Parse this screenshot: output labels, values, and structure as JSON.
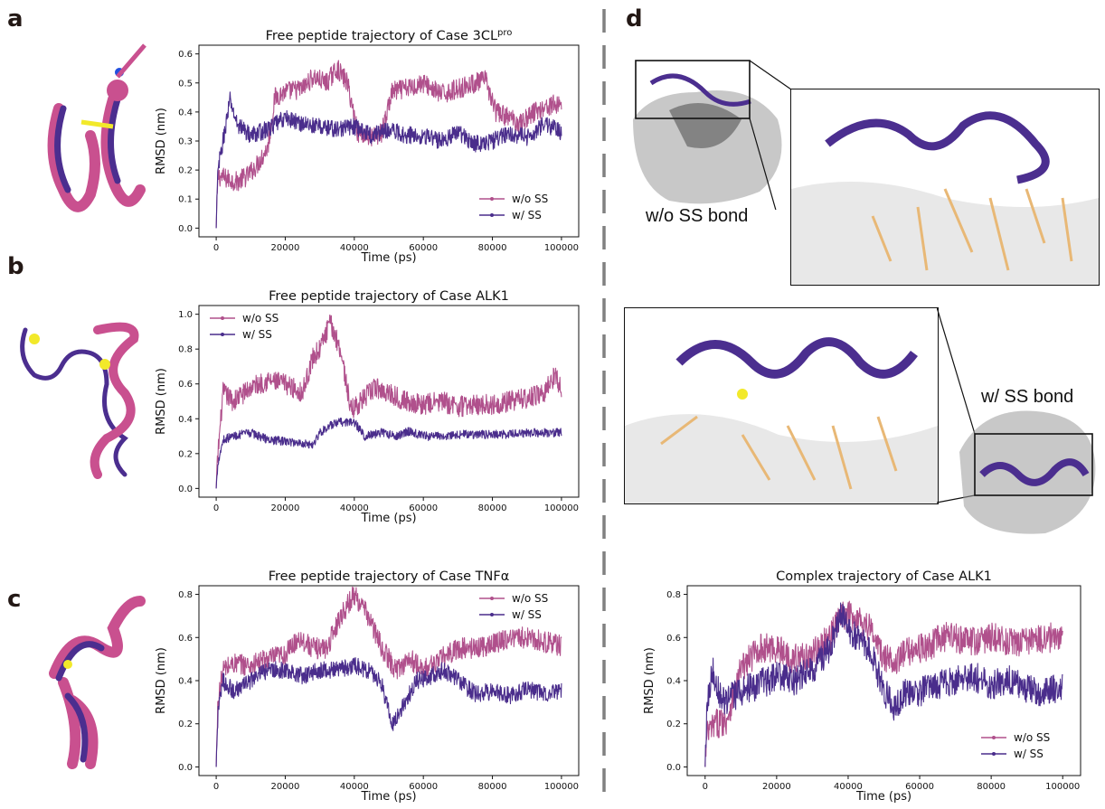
{
  "panels": {
    "a": "a",
    "b": "b",
    "c": "c",
    "d": "d"
  },
  "captions": {
    "wo_ss_bond": "w/o SS bond",
    "w_ss_bond": "w/ SS bond"
  },
  "colors": {
    "wo_ss": "#b0508c",
    "w_ss": "#4a2d8c",
    "helix_pink": "#c9508f",
    "helix_purple": "#4b2e8f",
    "bond_yellow": "#f2e92a",
    "sidechain_tan": "#e8b876",
    "surface_grey": "#9a9a9a"
  },
  "chart_data": [
    {
      "id": "a",
      "type": "line",
      "title": "Free peptide trajectory of Case 3CL",
      "title_sup": "pro",
      "xlabel": "Time (ps)",
      "ylabel": "RMSD (nm)",
      "xlim": [
        0,
        100000
      ],
      "ylim": [
        0,
        0.6
      ],
      "xticks": [
        "0",
        "20000",
        "40000",
        "60000",
        "80000",
        "100000"
      ],
      "yticks": [
        "0.0",
        "0.1",
        "0.2",
        "0.3",
        "0.4",
        "0.5",
        "0.6"
      ],
      "legend": "lower-right",
      "series": [
        {
          "name": "w/o SS",
          "noise": 0.035,
          "points": [
            [
              0,
              0.0
            ],
            [
              500,
              0.18
            ],
            [
              3000,
              0.17
            ],
            [
              6000,
              0.16
            ],
            [
              9000,
              0.18
            ],
            [
              12000,
              0.22
            ],
            [
              15000,
              0.28
            ],
            [
              17000,
              0.45
            ],
            [
              20000,
              0.47
            ],
            [
              25000,
              0.48
            ],
            [
              28000,
              0.52
            ],
            [
              32000,
              0.5
            ],
            [
              35000,
              0.55
            ],
            [
              38000,
              0.5
            ],
            [
              41000,
              0.33
            ],
            [
              45000,
              0.31
            ],
            [
              48000,
              0.33
            ],
            [
              51000,
              0.47
            ],
            [
              55000,
              0.48
            ],
            [
              60000,
              0.5
            ],
            [
              65000,
              0.46
            ],
            [
              70000,
              0.48
            ],
            [
              75000,
              0.5
            ],
            [
              78000,
              0.51
            ],
            [
              81000,
              0.4
            ],
            [
              85000,
              0.38
            ],
            [
              88000,
              0.36
            ],
            [
              92000,
              0.4
            ],
            [
              96000,
              0.42
            ],
            [
              100000,
              0.43
            ]
          ]
        },
        {
          "name": "w/ SS",
          "noise": 0.03,
          "points": [
            [
              0,
              0.0
            ],
            [
              500,
              0.2
            ],
            [
              2000,
              0.3
            ],
            [
              4000,
              0.44
            ],
            [
              6000,
              0.36
            ],
            [
              10000,
              0.32
            ],
            [
              15000,
              0.34
            ],
            [
              20000,
              0.38
            ],
            [
              25000,
              0.36
            ],
            [
              30000,
              0.35
            ],
            [
              35000,
              0.34
            ],
            [
              40000,
              0.35
            ],
            [
              45000,
              0.32
            ],
            [
              50000,
              0.34
            ],
            [
              55000,
              0.32
            ],
            [
              60000,
              0.32
            ],
            [
              65000,
              0.3
            ],
            [
              70000,
              0.33
            ],
            [
              75000,
              0.29
            ],
            [
              80000,
              0.3
            ],
            [
              85000,
              0.33
            ],
            [
              90000,
              0.31
            ],
            [
              95000,
              0.36
            ],
            [
              100000,
              0.33
            ]
          ]
        }
      ]
    },
    {
      "id": "b",
      "type": "line",
      "title": "Free peptide trajectory of Case ALK1",
      "xlabel": "Time (ps)",
      "ylabel": "RMSD (nm)",
      "xlim": [
        0,
        100000
      ],
      "ylim": [
        0,
        1.0
      ],
      "xticks": [
        "0",
        "20000",
        "40000",
        "60000",
        "80000",
        "100000"
      ],
      "yticks": [
        "0.0",
        "0.2",
        "0.4",
        "0.6",
        "0.8",
        "1.0"
      ],
      "legend": "upper-left",
      "series": [
        {
          "name": "w/o SS",
          "noise": 0.06,
          "points": [
            [
              0,
              0.0
            ],
            [
              500,
              0.2
            ],
            [
              2000,
              0.55
            ],
            [
              5000,
              0.5
            ],
            [
              10000,
              0.58
            ],
            [
              15000,
              0.62
            ],
            [
              20000,
              0.6
            ],
            [
              25000,
              0.55
            ],
            [
              28000,
              0.75
            ],
            [
              30000,
              0.8
            ],
            [
              33000,
              0.95
            ],
            [
              36000,
              0.8
            ],
            [
              39000,
              0.45
            ],
            [
              42000,
              0.5
            ],
            [
              46000,
              0.58
            ],
            [
              50000,
              0.55
            ],
            [
              55000,
              0.5
            ],
            [
              60000,
              0.48
            ],
            [
              65000,
              0.5
            ],
            [
              70000,
              0.47
            ],
            [
              75000,
              0.48
            ],
            [
              80000,
              0.48
            ],
            [
              85000,
              0.5
            ],
            [
              90000,
              0.52
            ],
            [
              95000,
              0.55
            ],
            [
              98000,
              0.65
            ],
            [
              100000,
              0.58
            ]
          ]
        },
        {
          "name": "w/ SS",
          "noise": 0.025,
          "points": [
            [
              0,
              0.0
            ],
            [
              500,
              0.15
            ],
            [
              2000,
              0.28
            ],
            [
              5000,
              0.3
            ],
            [
              10000,
              0.32
            ],
            [
              15000,
              0.28
            ],
            [
              20000,
              0.27
            ],
            [
              25000,
              0.26
            ],
            [
              28000,
              0.25
            ],
            [
              30000,
              0.32
            ],
            [
              33000,
              0.36
            ],
            [
              36000,
              0.38
            ],
            [
              40000,
              0.38
            ],
            [
              43000,
              0.3
            ],
            [
              48000,
              0.32
            ],
            [
              52000,
              0.3
            ],
            [
              56000,
              0.33
            ],
            [
              60000,
              0.3
            ],
            [
              65000,
              0.3
            ],
            [
              70000,
              0.31
            ],
            [
              75000,
              0.31
            ],
            [
              80000,
              0.31
            ],
            [
              85000,
              0.31
            ],
            [
              90000,
              0.32
            ],
            [
              95000,
              0.32
            ],
            [
              100000,
              0.32
            ]
          ]
        }
      ]
    },
    {
      "id": "c",
      "type": "line",
      "title": "Free peptide trajectory of Case TNFα",
      "xlabel": "Time (ps)",
      "ylabel": "RMSD (nm)",
      "xlim": [
        0,
        100000
      ],
      "ylim": [
        0,
        0.8
      ],
      "xticks": [
        "0",
        "20000",
        "40000",
        "60000",
        "80000",
        "100000"
      ],
      "yticks": [
        "0.0",
        "0.2",
        "0.4",
        "0.6",
        "0.8"
      ],
      "legend": "upper-right",
      "series": [
        {
          "name": "w/o SS",
          "noise": 0.05,
          "points": [
            [
              0,
              0.0
            ],
            [
              500,
              0.3
            ],
            [
              2000,
              0.45
            ],
            [
              5000,
              0.48
            ],
            [
              10000,
              0.47
            ],
            [
              15000,
              0.5
            ],
            [
              20000,
              0.52
            ],
            [
              24000,
              0.6
            ],
            [
              28000,
              0.55
            ],
            [
              32000,
              0.55
            ],
            [
              36000,
              0.7
            ],
            [
              40000,
              0.8
            ],
            [
              44000,
              0.7
            ],
            [
              48000,
              0.55
            ],
            [
              52000,
              0.45
            ],
            [
              56000,
              0.5
            ],
            [
              60000,
              0.45
            ],
            [
              65000,
              0.5
            ],
            [
              70000,
              0.55
            ],
            [
              75000,
              0.55
            ],
            [
              80000,
              0.57
            ],
            [
              85000,
              0.6
            ],
            [
              90000,
              0.6
            ],
            [
              95000,
              0.58
            ],
            [
              100000,
              0.56
            ]
          ]
        },
        {
          "name": "w/ SS",
          "noise": 0.04,
          "points": [
            [
              0,
              0.0
            ],
            [
              500,
              0.25
            ],
            [
              2000,
              0.4
            ],
            [
              5000,
              0.35
            ],
            [
              10000,
              0.4
            ],
            [
              15000,
              0.45
            ],
            [
              20000,
              0.45
            ],
            [
              25000,
              0.42
            ],
            [
              30000,
              0.45
            ],
            [
              35000,
              0.45
            ],
            [
              40000,
              0.47
            ],
            [
              45000,
              0.44
            ],
            [
              48000,
              0.38
            ],
            [
              51000,
              0.2
            ],
            [
              54000,
              0.28
            ],
            [
              58000,
              0.4
            ],
            [
              62000,
              0.42
            ],
            [
              66000,
              0.45
            ],
            [
              70000,
              0.4
            ],
            [
              75000,
              0.34
            ],
            [
              80000,
              0.35
            ],
            [
              85000,
              0.33
            ],
            [
              90000,
              0.36
            ],
            [
              95000,
              0.34
            ],
            [
              100000,
              0.35
            ]
          ]
        }
      ]
    },
    {
      "id": "d",
      "type": "line",
      "title": "Complex trajectory of Case ALK1",
      "xlabel": "Time (ps)",
      "ylabel": "RMSD (nm)",
      "xlim": [
        0,
        100000
      ],
      "ylim": [
        0,
        0.8
      ],
      "xticks": [
        "0",
        "20000",
        "40000",
        "60000",
        "80000",
        "100000"
      ],
      "yticks": [
        "0.0",
        "0.2",
        "0.4",
        "0.6",
        "0.8"
      ],
      "legend": "lower-right",
      "series": [
        {
          "name": "w/o SS",
          "noise": 0.07,
          "points": [
            [
              0,
              0.0
            ],
            [
              500,
              0.15
            ],
            [
              3000,
              0.2
            ],
            [
              6000,
              0.22
            ],
            [
              10000,
              0.45
            ],
            [
              15000,
              0.55
            ],
            [
              20000,
              0.55
            ],
            [
              25000,
              0.5
            ],
            [
              30000,
              0.52
            ],
            [
              35000,
              0.6
            ],
            [
              38000,
              0.7
            ],
            [
              42000,
              0.7
            ],
            [
              46000,
              0.65
            ],
            [
              50000,
              0.5
            ],
            [
              54000,
              0.5
            ],
            [
              58000,
              0.55
            ],
            [
              62000,
              0.55
            ],
            [
              66000,
              0.6
            ],
            [
              70000,
              0.6
            ],
            [
              75000,
              0.58
            ],
            [
              80000,
              0.6
            ],
            [
              85000,
              0.58
            ],
            [
              90000,
              0.58
            ],
            [
              95000,
              0.6
            ],
            [
              100000,
              0.6
            ]
          ]
        },
        {
          "name": "w/ SS",
          "noise": 0.07,
          "points": [
            [
              0,
              0.0
            ],
            [
              500,
              0.3
            ],
            [
              2000,
              0.45
            ],
            [
              5000,
              0.3
            ],
            [
              10000,
              0.35
            ],
            [
              15000,
              0.38
            ],
            [
              20000,
              0.42
            ],
            [
              25000,
              0.4
            ],
            [
              30000,
              0.45
            ],
            [
              35000,
              0.55
            ],
            [
              38000,
              0.7
            ],
            [
              42000,
              0.6
            ],
            [
              46000,
              0.55
            ],
            [
              50000,
              0.35
            ],
            [
              53000,
              0.28
            ],
            [
              56000,
              0.35
            ],
            [
              60000,
              0.35
            ],
            [
              65000,
              0.38
            ],
            [
              70000,
              0.4
            ],
            [
              75000,
              0.42
            ],
            [
              80000,
              0.38
            ],
            [
              85000,
              0.4
            ],
            [
              90000,
              0.36
            ],
            [
              95000,
              0.35
            ],
            [
              100000,
              0.38
            ]
          ]
        }
      ]
    }
  ]
}
